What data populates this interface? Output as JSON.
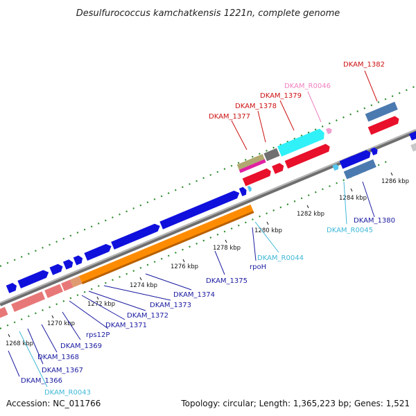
{
  "title": "Desulfurococcus kamchatkensis 1221n, complete genome",
  "accession": "Accession: NC_011766",
  "summary": "Topology: circular; Length: 1,365,223 bp; Genes: 1,521",
  "colors": {
    "backbone": "#8a8a8a",
    "grid": "#2a8a2a",
    "cds_red": "#e8102a",
    "cds_blue": "#1010dd",
    "rrna_orange": "#ff8c00",
    "pseudo_pink": "#e87878",
    "trna_cyan": "#55c8f0",
    "ncrna_pink": "#f0a0d0",
    "steel_blue": "#4a7ab0",
    "aqua": "#30f0f8",
    "olive": "#b0a870",
    "magenta": "#e020a0",
    "dark_grey": "#707070",
    "light_grey": "#c8c8c8",
    "label_blue": "#1a1aa0",
    "label_red": "#cc1010",
    "label_cyan": "#40b8d8",
    "label_pink": "#f080c0"
  },
  "ticks": [
    "1268 kbp",
    "1270 kbp",
    "1272 kbp",
    "1274 kbp",
    "1276 kbp",
    "1278 kbp",
    "1280 kbp",
    "1282 kbp",
    "1284 kbp",
    "1286 kbp"
  ],
  "labels": [
    {
      "id": "DKAM_1382",
      "text": "DKAM_1382",
      "color": "red"
    },
    {
      "id": "DKAM_R0046",
      "text": "DKAM_R0046",
      "color": "pink"
    },
    {
      "id": "DKAM_1379",
      "text": "DKAM_1379",
      "color": "red"
    },
    {
      "id": "DKAM_1378",
      "text": "DKAM_1378",
      "color": "red"
    },
    {
      "id": "DKAM_1377",
      "text": "DKAM_1377",
      "color": "red"
    },
    {
      "id": "DKAM_1380",
      "text": "DKAM_1380",
      "color": "blue"
    },
    {
      "id": "DKAM_R0045",
      "text": "DKAM_R0045",
      "color": "cyan"
    },
    {
      "id": "DKAM_R0044",
      "text": "DKAM_R0044",
      "color": "cyan"
    },
    {
      "id": "rpoH",
      "text": "rpoH",
      "color": "blue"
    },
    {
      "id": "DKAM_1375",
      "text": "DKAM_1375",
      "color": "blue"
    },
    {
      "id": "DKAM_1374",
      "text": "DKAM_1374",
      "color": "blue"
    },
    {
      "id": "DKAM_1373",
      "text": "DKAM_1373",
      "color": "blue"
    },
    {
      "id": "DKAM_1372",
      "text": "DKAM_1372",
      "color": "blue"
    },
    {
      "id": "DKAM_1371",
      "text": "DKAM_1371",
      "color": "blue"
    },
    {
      "id": "rps12P",
      "text": "rps12P",
      "color": "blue"
    },
    {
      "id": "DKAM_1369",
      "text": "DKAM_1369",
      "color": "blue"
    },
    {
      "id": "DKAM_1368",
      "text": "DKAM_1368",
      "color": "blue"
    },
    {
      "id": "DKAM_1367",
      "text": "DKAM_1367",
      "color": "blue"
    },
    {
      "id": "DKAM_1366",
      "text": "DKAM_1366",
      "color": "blue"
    },
    {
      "id": "DKAM_R0043",
      "text": "DKAM_R0043",
      "color": "cyan"
    }
  ]
}
